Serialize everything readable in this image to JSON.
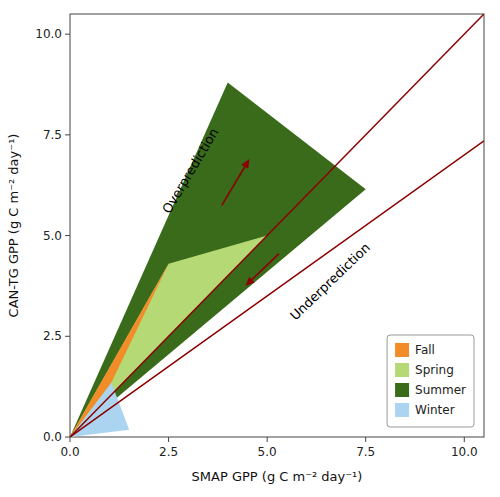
{
  "chart_data": {
    "type": "polygon",
    "xlabel": "SMAP GPP (g C m⁻² day⁻¹)",
    "ylabel": "CAN-TG GPP (g C m⁻² day⁻¹)",
    "xlim": [
      0.0,
      10.5
    ],
    "ylim": [
      0.0,
      10.5
    ],
    "xticks": [
      {
        "value": 0.0,
        "label": "0.0"
      },
      2.5,
      {
        "value": 5.0,
        "label": "5.0"
      },
      7.5,
      {
        "value": 10.0,
        "label": "10.0"
      }
    ],
    "yticks": [
      {
        "value": 0.0,
        "label": "0.0"
      },
      2.5,
      {
        "value": 5.0,
        "label": "5.0"
      },
      7.5,
      {
        "value": 10.0,
        "label": "10.0"
      }
    ],
    "legend": "lower right",
    "series": [
      {
        "name": "Fall",
        "type": "polygon",
        "color": "#f28c28",
        "x": [
          0,
          1.05,
          2.5
        ],
        "values": [
          0,
          1.35,
          4.3
        ]
      },
      {
        "name": "Spring",
        "type": "polygon",
        "color": "#b5d975",
        "x": [
          0,
          2.5,
          5.0
        ],
        "values": [
          0,
          4.3,
          5.0
        ]
      },
      {
        "name": "Summer",
        "type": "polygon",
        "color": "#3a6b1a",
        "x": [
          0,
          4.0,
          7.5
        ],
        "values": [
          0,
          8.8,
          6.15
        ]
      },
      {
        "name": "Winter",
        "type": "polygon",
        "color": "#aad4f0",
        "x": [
          0,
          1.5,
          1.05
        ],
        "values": [
          0,
          0.18,
          1.35
        ]
      },
      {
        "type": "line",
        "color": "#8B0000",
        "x": [
          0,
          10.5
        ],
        "values": [
          0,
          10.5
        ]
      },
      {
        "type": "line",
        "color": "#8B0000",
        "x": [
          0,
          10.5
        ],
        "values": [
          0,
          7.35
        ]
      }
    ],
    "annotations": [
      {
        "text": "Overprediction",
        "x": 3.15,
        "y": 6.55,
        "arrow_from": [
          3.85,
          5.75
        ],
        "arrow_to": [
          4.55,
          6.9
        ],
        "color": "#8B0000"
      },
      {
        "text": "Underprediction",
        "x": 5.55,
        "y": 3.05,
        "arrow_from": [
          5.3,
          4.55
        ],
        "arrow_to": [
          4.45,
          3.75
        ],
        "color": "#8B0000"
      }
    ]
  }
}
